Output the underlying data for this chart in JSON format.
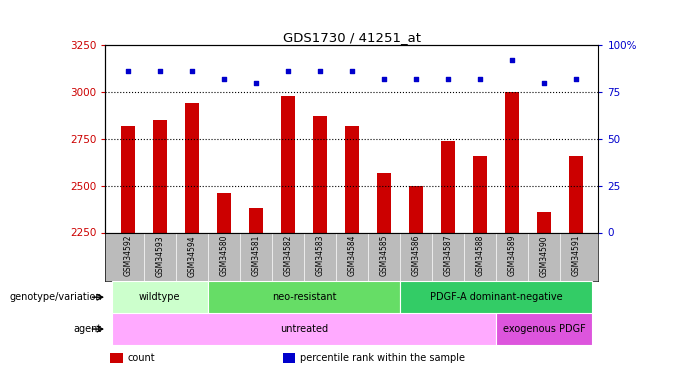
{
  "title": "GDS1730 / 41251_at",
  "samples": [
    "GSM34592",
    "GSM34593",
    "GSM34594",
    "GSM34580",
    "GSM34581",
    "GSM34582",
    "GSM34583",
    "GSM34584",
    "GSM34585",
    "GSM34586",
    "GSM34587",
    "GSM34588",
    "GSM34589",
    "GSM34590",
    "GSM34591"
  ],
  "counts": [
    2820,
    2850,
    2940,
    2460,
    2380,
    2980,
    2870,
    2820,
    2570,
    2500,
    2740,
    2660,
    3000,
    2360,
    2660
  ],
  "percentile_ranks": [
    86,
    86,
    86,
    82,
    80,
    86,
    86,
    86,
    82,
    82,
    82,
    82,
    92,
    80,
    82
  ],
  "ylim": [
    2250,
    3250
  ],
  "yticks": [
    2250,
    2500,
    2750,
    3000,
    3250
  ],
  "y2lim": [
    0,
    100
  ],
  "y2ticks": [
    0,
    25,
    50,
    75,
    100
  ],
  "y2ticklabels": [
    "0",
    "25",
    "50",
    "75",
    "100%"
  ],
  "bar_color": "#cc0000",
  "scatter_color": "#0000cc",
  "bg_color": "#ffffff",
  "tick_label_area_color": "#bbbbbb",
  "genotype_groups": [
    {
      "label": "wildtype",
      "start": 0,
      "end": 3,
      "color": "#ccffcc"
    },
    {
      "label": "neo-resistant",
      "start": 3,
      "end": 9,
      "color": "#66dd66"
    },
    {
      "label": "PDGF-A dominant-negative",
      "start": 9,
      "end": 15,
      "color": "#33cc66"
    }
  ],
  "agent_groups": [
    {
      "label": "untreated",
      "start": 0,
      "end": 12,
      "color": "#ffaaff"
    },
    {
      "label": "exogenous PDGF",
      "start": 12,
      "end": 15,
      "color": "#dd55dd"
    }
  ],
  "legend_items": [
    {
      "label": "count",
      "color": "#cc0000"
    },
    {
      "label": "percentile rank within the sample",
      "color": "#0000cc"
    }
  ],
  "ylabel_color_left": "#cc0000",
  "ylabel_color_right": "#0000cc",
  "genotype_label": "genotype/variation",
  "agent_label": "agent"
}
